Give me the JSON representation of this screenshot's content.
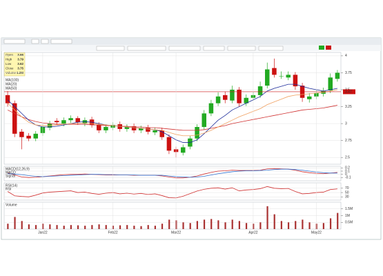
{
  "ui": {
    "info_box": [
      [
        "Open",
        "3.66"
      ],
      [
        "High",
        "3.79"
      ],
      [
        "Low",
        "3.62"
      ],
      [
        "Close",
        "3.75"
      ],
      [
        "Volume",
        "1.2M"
      ]
    ]
  },
  "chart_data": [
    {
      "type": "candlestick",
      "open": [
        3.42,
        3.3,
        2.88,
        2.82,
        2.78,
        2.86,
        2.94,
        3.04,
        3.0,
        3.05,
        3.08,
        3.0,
        3.06,
        2.98,
        2.9,
        2.94,
        2.99,
        2.92,
        2.96,
        2.9,
        2.94,
        2.87,
        2.9,
        2.8,
        2.62,
        2.57,
        2.66,
        2.78,
        2.95,
        3.15,
        3.3,
        3.42,
        3.34,
        3.5,
        3.3,
        3.38,
        3.42,
        3.56,
        3.82,
        3.7,
        3.68,
        3.72,
        3.56,
        3.36,
        3.4,
        3.44,
        3.49,
        3.66
      ],
      "high": [
        3.48,
        3.34,
        2.92,
        2.86,
        2.89,
        2.99,
        3.04,
        3.08,
        3.09,
        3.12,
        3.11,
        3.09,
        3.1,
        3.02,
        2.99,
        3.02,
        3.03,
        2.99,
        3.0,
        2.97,
        2.98,
        2.94,
        2.94,
        2.84,
        2.66,
        2.69,
        2.82,
        2.99,
        3.2,
        3.35,
        3.46,
        3.47,
        3.56,
        3.54,
        3.43,
        3.47,
        3.62,
        3.9,
        3.96,
        3.77,
        3.77,
        3.76,
        3.6,
        3.45,
        3.5,
        3.53,
        3.74,
        3.79
      ],
      "low": [
        3.25,
        2.8,
        2.62,
        2.74,
        2.74,
        2.82,
        2.9,
        2.98,
        2.96,
        3.01,
        2.98,
        2.96,
        2.94,
        2.86,
        2.86,
        2.9,
        2.88,
        2.88,
        2.86,
        2.86,
        2.84,
        2.83,
        2.76,
        2.55,
        2.5,
        2.53,
        2.62,
        2.74,
        2.91,
        3.11,
        3.26,
        3.3,
        3.3,
        3.25,
        3.26,
        3.34,
        3.38,
        3.52,
        3.68,
        3.66,
        3.64,
        3.5,
        3.32,
        3.31,
        3.36,
        3.4,
        3.45,
        3.62
      ],
      "close": [
        3.3,
        2.85,
        2.8,
        2.78,
        2.85,
        2.95,
        3.0,
        3.02,
        3.05,
        3.08,
        3.02,
        3.05,
        2.98,
        2.9,
        2.95,
        2.98,
        2.92,
        2.95,
        2.9,
        2.93,
        2.88,
        2.9,
        2.8,
        2.6,
        2.58,
        2.65,
        2.78,
        2.95,
        3.15,
        3.3,
        3.4,
        3.35,
        3.5,
        3.3,
        3.38,
        3.42,
        3.55,
        3.8,
        3.72,
        3.7,
        3.72,
        3.55,
        3.38,
        3.4,
        3.45,
        3.48,
        3.68,
        3.75
      ],
      "up_color": "#22aa22",
      "down_color": "#cc1111",
      "series": [
        {
          "name": "MA(100)",
          "color": "#d03030",
          "values": [
            3.2,
            3.15,
            3.1,
            3.06,
            3.03,
            3.01,
            3.0,
            2.99,
            2.99,
            2.99,
            2.99,
            2.99,
            2.98,
            2.98,
            2.97,
            2.97,
            2.96,
            2.96,
            2.95,
            2.95,
            2.94,
            2.94,
            2.93,
            2.92,
            2.91,
            2.9,
            2.9,
            2.9,
            2.91,
            2.93,
            2.95,
            2.97,
            3.0,
            3.02,
            3.04,
            3.06,
            3.08,
            3.1,
            3.12,
            3.14,
            3.16,
            3.18,
            3.2,
            3.21,
            3.22,
            3.23,
            3.25,
            3.27
          ]
        },
        {
          "name": "MA(20)",
          "color": "#1a2a9a",
          "values": [
            3.35,
            3.25,
            3.15,
            3.05,
            2.98,
            2.95,
            2.95,
            2.96,
            2.98,
            3.0,
            3.02,
            3.03,
            3.02,
            3.0,
            2.98,
            2.97,
            2.96,
            2.95,
            2.94,
            2.93,
            2.92,
            2.91,
            2.88,
            2.82,
            2.76,
            2.72,
            2.72,
            2.76,
            2.85,
            2.95,
            3.05,
            3.12,
            3.2,
            3.25,
            3.3,
            3.35,
            3.4,
            3.48,
            3.52,
            3.55,
            3.58,
            3.58,
            3.55,
            3.52,
            3.5,
            3.48,
            3.5,
            3.52
          ]
        },
        {
          "name": "MA(50)",
          "color": "#f0a060",
          "values": [
            3.3,
            3.2,
            3.1,
            3.02,
            2.98,
            2.97,
            2.97,
            2.98,
            2.99,
            3.0,
            3.0,
            3.01,
            3.0,
            2.99,
            2.98,
            2.97,
            2.96,
            2.95,
            2.94,
            2.93,
            2.92,
            2.91,
            2.9,
            2.87,
            2.84,
            2.82,
            2.82,
            2.83,
            2.86,
            2.9,
            2.95,
            3.0,
            3.05,
            3.1,
            3.14,
            3.18,
            3.22,
            3.28,
            3.32,
            3.36,
            3.4,
            3.42,
            3.43,
            3.44,
            3.45,
            3.46,
            3.48,
            3.5
          ]
        }
      ],
      "hline": 3.47,
      "ylim": [
        2.4,
        4.05
      ],
      "yticks": [
        4,
        3.75,
        3.5,
        3.25,
        3,
        2.75,
        2.5
      ],
      "grid": true
    },
    {
      "type": "line",
      "title": "MACD(12,26,9)",
      "series": [
        {
          "name": "MACD",
          "color": "#d03030",
          "values": [
            0.05,
            -0.02,
            -0.08,
            -0.1,
            -0.09,
            -0.07,
            -0.05,
            -0.03,
            -0.01,
            0.0,
            0.0,
            0.01,
            0.0,
            -0.01,
            -0.02,
            -0.02,
            -0.02,
            -0.02,
            -0.03,
            -0.03,
            -0.03,
            -0.03,
            -0.05,
            -0.08,
            -0.11,
            -0.11,
            -0.09,
            -0.05,
            0.01,
            0.06,
            0.1,
            0.11,
            0.13,
            0.12,
            0.12,
            0.12,
            0.13,
            0.17,
            0.18,
            0.17,
            0.16,
            0.13,
            0.08,
            0.05,
            0.03,
            0.02,
            0.04,
            0.06
          ]
        },
        {
          "name": "Signal",
          "color": "#3070d0",
          "values": [
            0.02,
            0.01,
            -0.01,
            -0.04,
            -0.06,
            -0.07,
            -0.06,
            -0.05,
            -0.04,
            -0.03,
            -0.02,
            -0.01,
            0.0,
            0.0,
            -0.01,
            -0.01,
            -0.02,
            -0.02,
            -0.02,
            -0.03,
            -0.03,
            -0.03,
            -0.03,
            -0.05,
            -0.07,
            -0.08,
            -0.09,
            -0.08,
            -0.06,
            -0.02,
            0.02,
            0.05,
            0.08,
            0.1,
            0.11,
            0.11,
            0.12,
            0.13,
            0.15,
            0.16,
            0.16,
            0.15,
            0.13,
            0.1,
            0.07,
            0.05,
            0.04,
            0.04
          ]
        }
      ],
      "ylim": [
        -0.2,
        0.25
      ],
      "yticks": [
        0.2,
        0.1,
        0,
        -0.1
      ],
      "grid": true
    },
    {
      "type": "line",
      "title": "RSI(14)",
      "series": [
        {
          "name": "RSI",
          "color": "#d03030",
          "values": [
            55,
            35,
            32,
            30,
            38,
            48,
            52,
            54,
            56,
            58,
            50,
            52,
            46,
            42,
            47,
            50,
            44,
            47,
            43,
            46,
            41,
            44,
            36,
            26,
            25,
            33,
            45,
            57,
            65,
            70,
            72,
            66,
            72,
            58,
            62,
            64,
            68,
            78,
            70,
            68,
            69,
            55,
            44,
            46,
            50,
            52,
            64,
            67
          ]
        }
      ],
      "ylim": [
        15,
        95
      ],
      "yticks": [
        70,
        50,
        30
      ],
      "grid": true
    },
    {
      "type": "bar",
      "title": "Volume",
      "color": "#aa3333",
      "categories": [
        null,
        null,
        null,
        null,
        null,
        "Jan22",
        null,
        null,
        null,
        null,
        null,
        null,
        null,
        null,
        null,
        "Feb22",
        null,
        null,
        null,
        null,
        null,
        null,
        null,
        null,
        "Mar22",
        null,
        null,
        null,
        null,
        null,
        null,
        null,
        null,
        null,
        null,
        "Apr22",
        null,
        null,
        null,
        null,
        null,
        null,
        null,
        null,
        "May22",
        null,
        null,
        null
      ],
      "values": [
        400000,
        900000,
        600000,
        350000,
        300000,
        400000,
        350000,
        300000,
        250000,
        300000,
        280000,
        250000,
        300000,
        350000,
        300000,
        250000,
        280000,
        300000,
        250000,
        220000,
        300000,
        250000,
        400000,
        700000,
        650000,
        500000,
        450000,
        600000,
        700000,
        750000,
        650000,
        500000,
        700000,
        600000,
        450000,
        400000,
        500000,
        1700000,
        1100000,
        600000,
        500000,
        600000,
        700000,
        500000,
        400000,
        450000,
        800000,
        1200000
      ],
      "ylim": [
        0,
        2000000
      ],
      "yticks": [
        {
          "value": 1500000,
          "label": "1.5M"
        },
        {
          "value": 1000000,
          "label": "1M"
        },
        {
          "value": 500000,
          "label": "0.5M"
        }
      ],
      "grid": true
    }
  ]
}
